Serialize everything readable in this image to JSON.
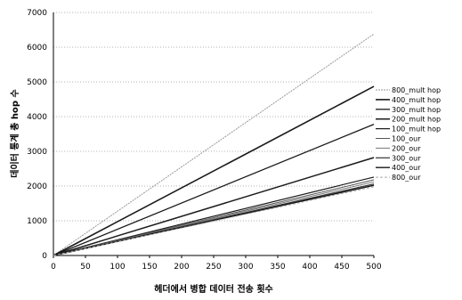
{
  "chart_data": {
    "type": "line",
    "xlabel": "헤더에서 병합 데이터 전송 횟수",
    "ylabel": "데이터 통계 총 hop 수",
    "xlim": [
      0,
      500
    ],
    "ylim": [
      0,
      7000
    ],
    "x_ticks": [
      0,
      50,
      100,
      150,
      200,
      250,
      300,
      350,
      400,
      450,
      500
    ],
    "y_ticks": [
      0,
      1000,
      2000,
      3000,
      4000,
      5000,
      6000,
      7000
    ],
    "grid": "horizontal-dotted",
    "legend_position": "right",
    "x": [
      0,
      500
    ],
    "series": [
      {
        "name": "800_mult hop",
        "values": [
          0,
          6380
        ],
        "color": "#9a9a9a",
        "dash": "2,1",
        "width": 1.0
      },
      {
        "name": "400_mult hop",
        "values": [
          0,
          4870
        ],
        "color": "#1a1a1a",
        "dash": "",
        "width": 1.6
      },
      {
        "name": "300_mult hop",
        "values": [
          0,
          3780
        ],
        "color": "#1a1a1a",
        "dash": "",
        "width": 1.3
      },
      {
        "name": "200_mult hop",
        "values": [
          0,
          2820
        ],
        "color": "#1a1a1a",
        "dash": "",
        "width": 1.5
      },
      {
        "name": "100_mult hop",
        "values": [
          0,
          2260
        ],
        "color": "#1a1a1a",
        "dash": "",
        "width": 1.2
      },
      {
        "name": "100_our",
        "values": [
          0,
          2180
        ],
        "color": "#555555",
        "dash": "",
        "width": 1.0
      },
      {
        "name": "200_our",
        "values": [
          0,
          2120
        ],
        "color": "#777777",
        "dash": "",
        "width": 1.0
      },
      {
        "name": "300_our",
        "values": [
          0,
          2060
        ],
        "color": "#333333",
        "dash": "",
        "width": 1.2
      },
      {
        "name": "400_our",
        "values": [
          0,
          2020
        ],
        "color": "#1a1a1a",
        "dash": "",
        "width": 1.4
      },
      {
        "name": "800_our",
        "values": [
          0,
          1980
        ],
        "color": "#aaaaaa",
        "dash": "3,2",
        "width": 1.0
      }
    ]
  }
}
